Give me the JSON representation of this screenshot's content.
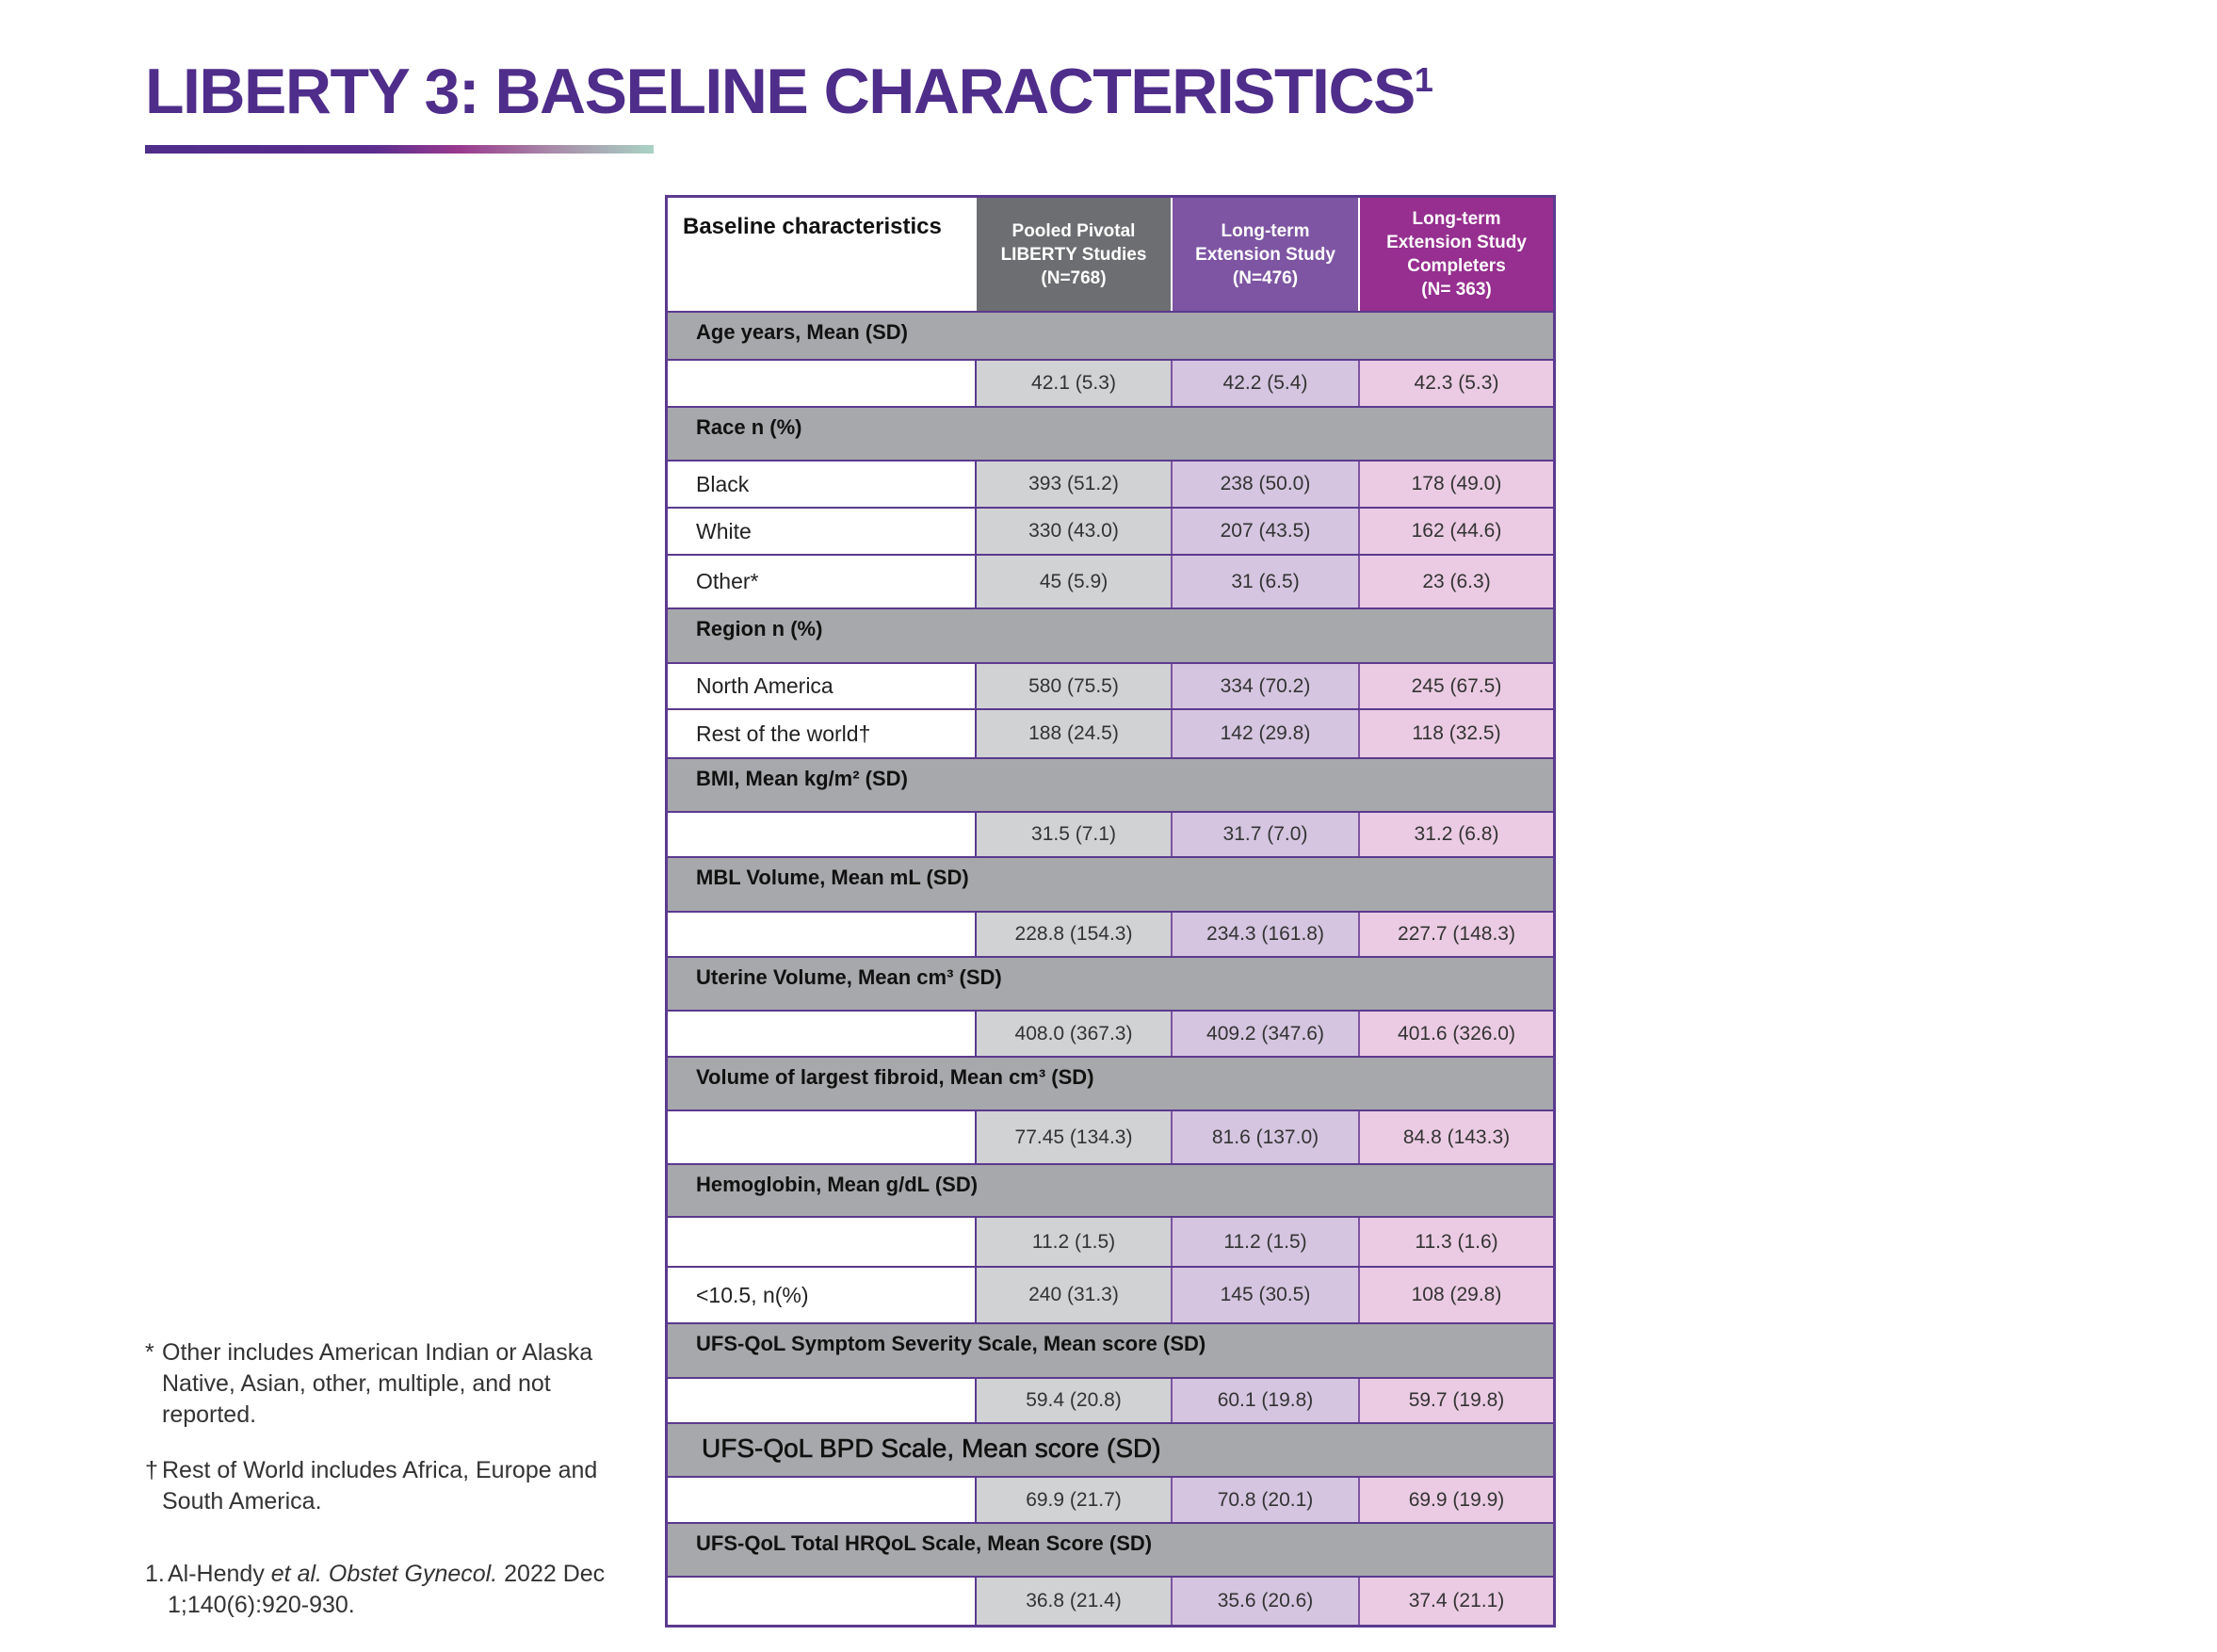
{
  "title": {
    "text": "LIBERTY 3: BASELINE CHARACTERISTICS",
    "superscript": "1"
  },
  "colors": {
    "title": "#4f2d8a",
    "border": "#5b3a8f",
    "header_col1": "#6d6e71",
    "header_col2": "#7e55a3",
    "header_col3": "#962f8f",
    "section": "#a7a8ab",
    "cell_col1": "#d1d2d4",
    "cell_col2": "#d5c5e0",
    "cell_col3": "#ebcbe3"
  },
  "table": {
    "header": {
      "label": "Baseline characteristics",
      "columns": [
        [
          "Pooled Pivotal",
          "LIBERTY Studies",
          "(N=768)"
        ],
        [
          "Long-term",
          "Extension Study",
          "(N=476)"
        ],
        [
          "Long-term",
          "Extension Study",
          "Completers",
          "(N= 363)"
        ]
      ]
    },
    "sections": [
      {
        "title": "Age years, Mean (SD)",
        "rows": [
          {
            "label": "",
            "values": [
              "42.1 (5.3)",
              "42.2 (5.4)",
              "42.3 (5.3)"
            ]
          }
        ]
      },
      {
        "title": "Race n (%)",
        "rows": [
          {
            "label": "Black",
            "values": [
              "393 (51.2)",
              "238 (50.0)",
              "178 (49.0)"
            ]
          },
          {
            "label": "White",
            "values": [
              "330 (43.0)",
              "207 (43.5)",
              "162 (44.6)"
            ]
          },
          {
            "label": "Other*",
            "values": [
              "45 (5.9)",
              "31 (6.5)",
              "23 (6.3)"
            ]
          }
        ]
      },
      {
        "title": "Region n (%)",
        "rows": [
          {
            "label": "North America",
            "values": [
              "580 (75.5)",
              "334 (70.2)",
              "245 (67.5)"
            ]
          },
          {
            "label": "Rest of the world†",
            "values": [
              "188 (24.5)",
              "142 (29.8)",
              "118 (32.5)"
            ]
          }
        ]
      },
      {
        "title": "BMI, Mean kg/m² (SD)",
        "rows": [
          {
            "label": "",
            "values": [
              "31.5 (7.1)",
              "31.7 (7.0)",
              "31.2 (6.8)"
            ]
          }
        ]
      },
      {
        "title": "MBL Volume, Mean mL (SD)",
        "rows": [
          {
            "label": "",
            "values": [
              "228.8 (154.3)",
              "234.3 (161.8)",
              "227.7 (148.3)"
            ]
          }
        ]
      },
      {
        "title": "Uterine Volume, Mean cm³ (SD)",
        "rows": [
          {
            "label": "",
            "values": [
              "408.0 (367.3)",
              "409.2 (347.6)",
              "401.6 (326.0)"
            ]
          }
        ]
      },
      {
        "title": "Volume of largest fibroid, Mean cm³ (SD)",
        "rows": [
          {
            "label": "",
            "values": [
              "77.45 (134.3)",
              "81.6 (137.0)",
              "84.8 (143.3)"
            ]
          }
        ]
      },
      {
        "title": "Hemoglobin, Mean g/dL (SD)",
        "rows": [
          {
            "label": "",
            "values": [
              "11.2 (1.5)",
              "11.2 (1.5)",
              "11.3 (1.6)"
            ]
          },
          {
            "label": "<10.5, n(%)",
            "values": [
              "240 (31.3)",
              "145 (30.5)",
              "108 (29.8)"
            ]
          }
        ]
      },
      {
        "title": "UFS-QoL Symptom Severity Scale, Mean score (SD)",
        "rows": [
          {
            "label": "",
            "values": [
              "59.4 (20.8)",
              "60.1 (19.8)",
              "59.7 (19.8)"
            ]
          }
        ]
      },
      {
        "title": "UFS-QoL BPD Scale,  Mean score (SD)",
        "rows": [
          {
            "label": "",
            "values": [
              "69.9 (21.7)",
              "70.8 (20.1)",
              "69.9 (19.9)"
            ]
          }
        ]
      },
      {
        "title": "UFS-QoL Total HRQoL Scale, Mean Score (SD)",
        "rows": [
          {
            "label": "",
            "values": [
              "36.8 (21.4)",
              "35.6 (20.6)",
              "37.4 (21.1)"
            ]
          }
        ]
      }
    ]
  },
  "footnotes": [
    {
      "mark": "*",
      "text": "Other includes American Indian or Alaska Native, Asian, other, multiple, and not reported."
    },
    {
      "mark": "†",
      "text": "Rest of World includes Africa, Europe and South America."
    }
  ],
  "reference": {
    "mark": "1.",
    "authors": "Al-Hendy",
    "etal": "et al. Obstet Gynecol.",
    "citation": "2022 Dec 1;140(6):920-930."
  }
}
